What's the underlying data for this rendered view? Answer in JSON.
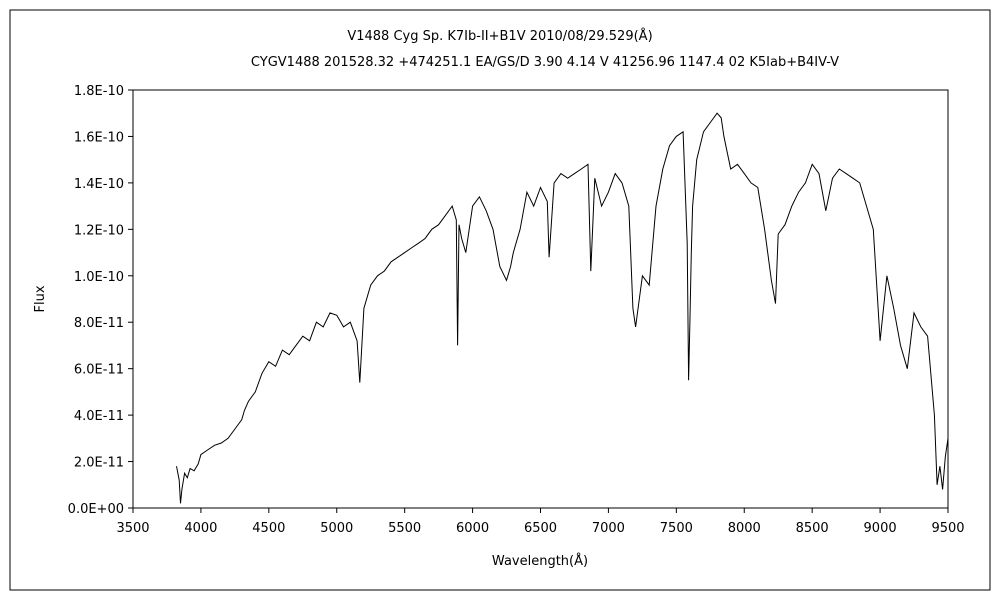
{
  "chart_data": {
    "type": "line",
    "title": "V1488 Cyg    Sp. K7Ib-II+B1V    2010/08/29.529(Å)",
    "subtitle": "CYGV1488 201528.32 +474251.1 EA/GS/D 3.90 4.14 V 41256.96 1147.4 02 K5Iab+B4IV-V",
    "xlabel": "Wavelength(Å)",
    "ylabel": "Flux",
    "xlim": [
      3500,
      9500
    ],
    "ylim": [
      0,
      1.8e-10
    ],
    "x_ticks": [
      "3500",
      "4000",
      "4500",
      "5000",
      "5500",
      "6000",
      "6500",
      "7000",
      "7500",
      "8000",
      "8500",
      "9000",
      "9500"
    ],
    "x_tick_values": [
      3500,
      4000,
      4500,
      5000,
      5500,
      6000,
      6500,
      7000,
      7500,
      8000,
      8500,
      9000,
      9500
    ],
    "y_ticks": [
      "0.0E+00",
      "2.0E-11",
      "4.0E-11",
      "6.0E-11",
      "8.0E-11",
      "1.0E-10",
      "1.2E-10",
      "1.4E-10",
      "1.6E-10",
      "1.8E-10"
    ],
    "y_tick_values": [
      0,
      2e-11,
      4e-11,
      6e-11,
      8e-11,
      1e-10,
      1.2e-10,
      1.4e-10,
      1.6e-10,
      1.8e-10
    ],
    "grid": false,
    "legend": "none",
    "line_color": "#000000",
    "series": [
      {
        "x": [
          3820,
          3840,
          3850,
          3860,
          3880,
          3900,
          3920,
          3950,
          3980,
          4000,
          4050,
          4100,
          4150,
          4200,
          4250,
          4300,
          4320,
          4350,
          4400,
          4450,
          4500,
          4550,
          4600,
          4650,
          4700,
          4750,
          4800,
          4850,
          4900,
          4950,
          5000,
          5050,
          5100,
          5150,
          5170,
          5200,
          5250,
          5300,
          5350,
          5400,
          5450,
          5500,
          5550,
          5600,
          5650,
          5700,
          5750,
          5800,
          5850,
          5880,
          5890,
          5900,
          5920,
          5950,
          6000,
          6050,
          6100,
          6150,
          6200,
          6250,
          6280,
          6300,
          6350,
          6400,
          6450,
          6500,
          6550,
          6563,
          6600,
          6650,
          6700,
          6750,
          6800,
          6850,
          6870,
          6900,
          6950,
          7000,
          7050,
          7100,
          7150,
          7180,
          7200,
          7250,
          7300,
          7350,
          7400,
          7450,
          7500,
          7550,
          7580,
          7590,
          7600,
          7610,
          7620,
          7650,
          7700,
          7750,
          7800,
          7830,
          7850,
          7900,
          7950,
          8000,
          8050,
          8100,
          8150,
          8200,
          8230,
          8250,
          8300,
          8350,
          8400,
          8450,
          8500,
          8550,
          8600,
          8650,
          8700,
          8750,
          8800,
          8850,
          8900,
          8950,
          9000,
          9050,
          9100,
          9150,
          9200,
          9250,
          9300,
          9350,
          9400,
          9420,
          9440,
          9460,
          9480,
          9500
        ],
        "y": [
          1.8e-11,
          1.2e-11,
          2e-12,
          8e-12,
          1.5e-11,
          1.3e-11,
          1.7e-11,
          1.6e-11,
          1.9e-11,
          2.3e-11,
          2.5e-11,
          2.7e-11,
          2.8e-11,
          3e-11,
          3.4e-11,
          3.8e-11,
          4.2e-11,
          4.6e-11,
          5e-11,
          5.8e-11,
          6.3e-11,
          6.1e-11,
          6.8e-11,
          6.6e-11,
          7e-11,
          7.4e-11,
          7.2e-11,
          8e-11,
          7.8e-11,
          8.4e-11,
          8.3e-11,
          7.8e-11,
          8e-11,
          7.2e-11,
          5.4e-11,
          8.6e-11,
          9.6e-11,
          1e-10,
          1.02e-10,
          1.06e-10,
          1.08e-10,
          1.1e-10,
          1.12e-10,
          1.14e-10,
          1.16e-10,
          1.2e-10,
          1.22e-10,
          1.26e-10,
          1.3e-10,
          1.24e-10,
          7e-11,
          1.22e-10,
          1.16e-10,
          1.1e-10,
          1.3e-10,
          1.34e-10,
          1.28e-10,
          1.2e-10,
          1.04e-10,
          9.8e-11,
          1.04e-10,
          1.1e-10,
          1.2e-10,
          1.36e-10,
          1.3e-10,
          1.38e-10,
          1.32e-10,
          1.08e-10,
          1.4e-10,
          1.44e-10,
          1.42e-10,
          1.44e-10,
          1.46e-10,
          1.48e-10,
          1.02e-10,
          1.42e-10,
          1.3e-10,
          1.36e-10,
          1.44e-10,
          1.4e-10,
          1.3e-10,
          8.6e-11,
          7.8e-11,
          1e-10,
          9.6e-11,
          1.3e-10,
          1.46e-10,
          1.56e-10,
          1.6e-10,
          1.62e-10,
          1.14e-10,
          5.5e-11,
          8e-11,
          1.1e-10,
          1.3e-10,
          1.5e-10,
          1.62e-10,
          1.66e-10,
          1.7e-10,
          1.68e-10,
          1.6e-10,
          1.46e-10,
          1.48e-10,
          1.44e-10,
          1.4e-10,
          1.38e-10,
          1.2e-10,
          9.8e-11,
          8.8e-11,
          1.18e-10,
          1.22e-10,
          1.3e-10,
          1.36e-10,
          1.4e-10,
          1.48e-10,
          1.44e-10,
          1.28e-10,
          1.42e-10,
          1.46e-10,
          1.44e-10,
          1.42e-10,
          1.4e-10,
          1.3e-10,
          1.2e-10,
          7.2e-11,
          1e-10,
          8.6e-11,
          7e-11,
          6e-11,
          8.4e-11,
          7.8e-11,
          7.4e-11,
          4e-11,
          1e-11,
          1.8e-11,
          8e-12,
          2.2e-11,
          3e-11
        ]
      }
    ]
  }
}
